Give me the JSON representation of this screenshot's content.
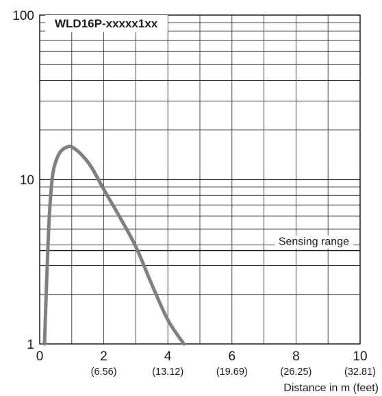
{
  "chart_data": {
    "type": "line",
    "title": "WLD16P-xxxxx1xx",
    "xlabel": "Distance in m (feet)",
    "ylabel": "",
    "xlim": [
      0,
      10
    ],
    "ylim": [
      1,
      100
    ],
    "yscale": "log",
    "grid": true,
    "x_ticks": [
      {
        "value": 0,
        "label": "0",
        "sub": ""
      },
      {
        "value": 2,
        "label": "2",
        "sub": "(6.56)"
      },
      {
        "value": 4,
        "label": "4",
        "sub": "(13.12)"
      },
      {
        "value": 6,
        "label": "6",
        "sub": "(19.69)"
      },
      {
        "value": 8,
        "label": "8",
        "sub": "(26.25)"
      },
      {
        "value": 10,
        "label": "10",
        "sub": "(32.81)"
      }
    ],
    "y_ticks": [
      {
        "value": 1,
        "label": "1"
      },
      {
        "value": 10,
        "label": "10"
      },
      {
        "value": 100,
        "label": "100"
      }
    ],
    "annotation": {
      "text": "Sensing range",
      "y": 3.7
    },
    "series": [
      {
        "color": "#808080",
        "x": [
          0.15,
          0.22,
          0.3,
          0.4,
          0.5,
          0.62,
          0.75,
          0.88,
          1.0,
          1.3,
          1.6,
          2.0,
          2.5,
          3.0,
          3.5,
          4.0,
          4.5
        ],
        "y": [
          1.0,
          2.5,
          6.0,
          10.5,
          12.8,
          14.5,
          15.4,
          15.8,
          15.8,
          14.2,
          12.0,
          8.7,
          5.9,
          3.9,
          2.3,
          1.4,
          1.0
        ]
      }
    ]
  }
}
